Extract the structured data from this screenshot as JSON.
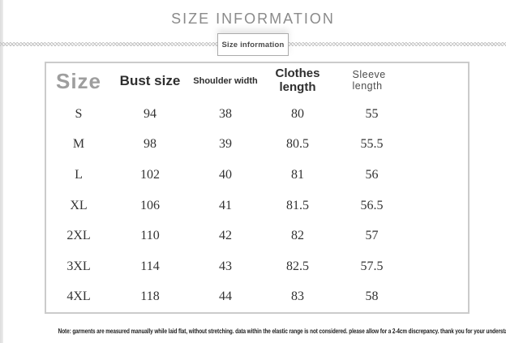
{
  "page": {
    "title": "SIZE INFORMATION",
    "tab_label": "Size information"
  },
  "table": {
    "columns": {
      "size": "Size",
      "bust": "Bust size",
      "shoulder": "Shoulder width",
      "clothes": "Clothes length",
      "sleeve": "Sleeve length"
    },
    "rows": [
      {
        "size": "S",
        "bust": "94",
        "shoulder": "38",
        "clothes": "80",
        "sleeve": "55"
      },
      {
        "size": "M",
        "bust": "98",
        "shoulder": "39",
        "clothes": "80.5",
        "sleeve": "55.5"
      },
      {
        "size": "L",
        "bust": "102",
        "shoulder": "40",
        "clothes": "81",
        "sleeve": "56"
      },
      {
        "size": "XL",
        "bust": "106",
        "shoulder": "41",
        "clothes": "81.5",
        "sleeve": "56.5"
      },
      {
        "size": "2XL",
        "bust": "110",
        "shoulder": "42",
        "clothes": "82",
        "sleeve": "57"
      },
      {
        "size": "3XL",
        "bust": "114",
        "shoulder": "43",
        "clothes": "82.5",
        "sleeve": "57.5"
      },
      {
        "size": "4XL",
        "bust": "118",
        "shoulder": "44",
        "clothes": "83",
        "sleeve": "58"
      }
    ],
    "unit_note": "Note: garments are measured manually while laid flat, without stretching. data within the elastic range is not considered. please allow for a 2-4cm discrepancy. thank you for your understanding!"
  },
  "colors": {
    "title_gray": "#8a8a8a",
    "header_dark": "#2e2e2e",
    "size_header_gray": "#9e9e9e",
    "table_border": "#cbcbcb",
    "body_text": "#333333",
    "edge_strip": "#dcdcdc"
  }
}
